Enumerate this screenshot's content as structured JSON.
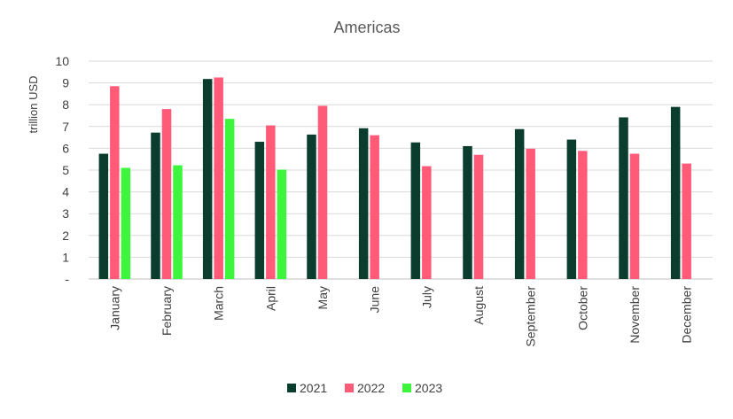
{
  "chart_data": {
    "type": "bar",
    "title": "Americas",
    "ylabel": "trillion USD",
    "xlabel": "",
    "ylim": [
      0,
      10
    ],
    "yticks": [
      "-",
      "1",
      "2",
      "3",
      "4",
      "5",
      "6",
      "7",
      "8",
      "9",
      "10"
    ],
    "grid": true,
    "legend_position": "bottom",
    "categories": [
      "January",
      "February",
      "March",
      "April",
      "May",
      "June",
      "July",
      "August",
      "September",
      "October",
      "November",
      "December"
    ],
    "series": [
      {
        "name": "2021",
        "color": "#0b3d2e",
        "values": [
          5.75,
          6.72,
          9.18,
          6.3,
          6.63,
          6.92,
          6.27,
          6.1,
          6.88,
          6.4,
          7.42,
          7.9
        ]
      },
      {
        "name": "2022",
        "color": "#ff5a78",
        "values": [
          8.85,
          7.8,
          9.25,
          7.05,
          7.95,
          6.6,
          5.18,
          5.7,
          5.98,
          5.88,
          5.75,
          5.3
        ]
      },
      {
        "name": "2023",
        "color": "#3cf53c",
        "values": [
          5.1,
          5.22,
          7.35,
          5.02,
          null,
          null,
          null,
          null,
          null,
          null,
          null,
          null
        ]
      }
    ]
  }
}
